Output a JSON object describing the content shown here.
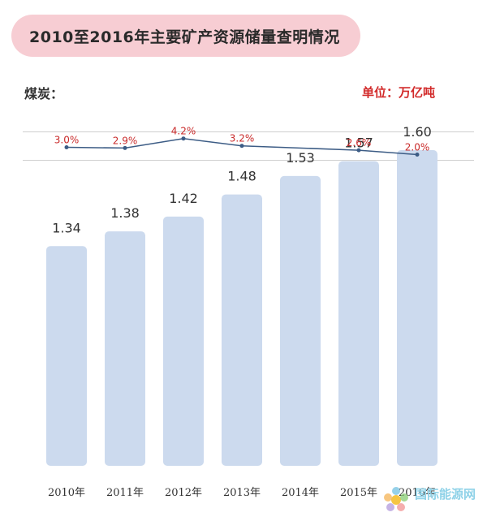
{
  "header": {
    "title": "2010至2016年主要矿产资源储量查明情况",
    "subject": "煤炭：",
    "unit": "单位：万亿吨"
  },
  "watermark": {
    "text": "国际能源网"
  },
  "colors": {
    "bar": "#ccdaee",
    "line": "#3c5c85",
    "growth_label": "#c92a2a",
    "title_bg": "#f7cdd3"
  },
  "chart_data": {
    "type": "bar",
    "categories": [
      "2010年",
      "2011年",
      "2012年",
      "2013年",
      "2014年",
      "2015年",
      "2016年"
    ],
    "values": [
      1.34,
      1.38,
      1.42,
      1.48,
      1.53,
      1.57,
      1.6
    ],
    "value_labels": [
      "1.34",
      "1.38",
      "1.42",
      "1.48",
      "1.53",
      "1.57",
      "1.60"
    ],
    "growth": {
      "type": "line",
      "values": [
        3.0,
        2.9,
        4.2,
        3.2,
        2.6,
        2.0
      ],
      "labels": [
        "3.0%",
        "2.9%",
        "4.2%",
        "3.2%",
        "2.6%",
        "2.0%"
      ],
      "x_categories": [
        "2010年",
        "2011年",
        "2012年",
        "2013年",
        "2015年",
        "2016年"
      ]
    },
    "title": "2010至2016年主要矿产资源储量查明情况",
    "xlabel": "",
    "ylabel": "",
    "grid": false,
    "legend": "none"
  }
}
